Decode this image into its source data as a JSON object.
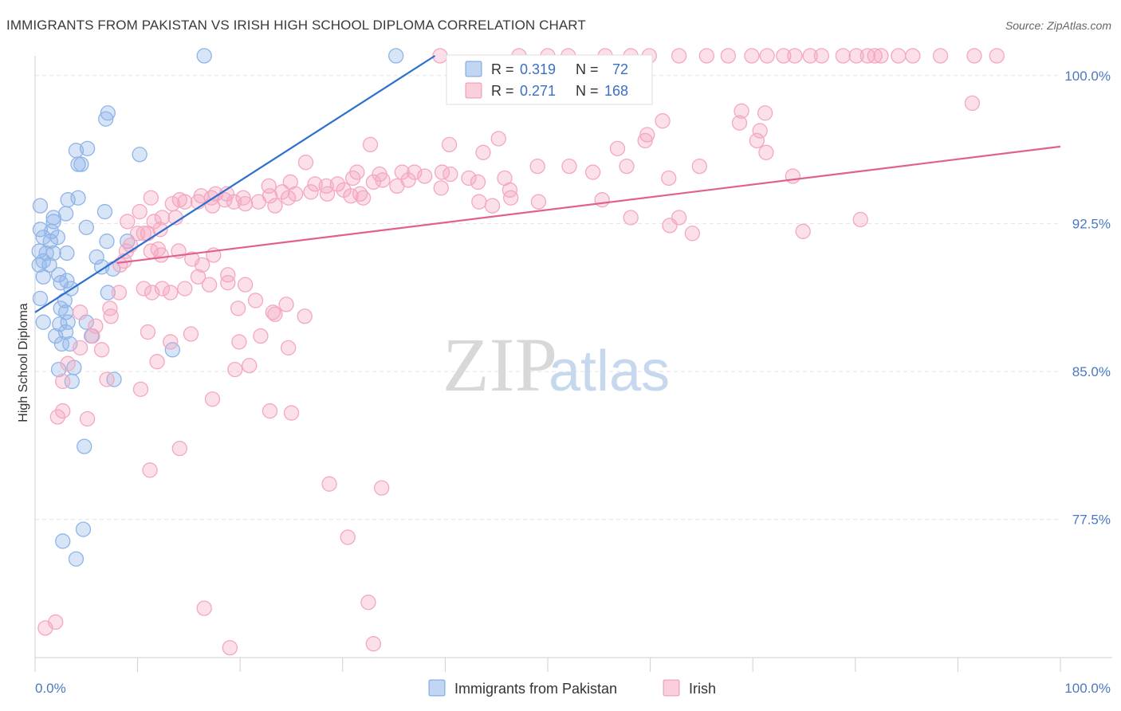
{
  "title": "IMMIGRANTS FROM PAKISTAN VS IRISH HIGH SCHOOL DIPLOMA CORRELATION CHART",
  "source": "Source: ZipAtlas.com",
  "watermark": {
    "zip": "ZIP",
    "atlas": "atlas"
  },
  "chart_data": {
    "type": "scatter",
    "xlabel": "",
    "ylabel": "High School Diploma",
    "xlim": [
      0,
      100
    ],
    "ylim": [
      70.5,
      101
    ],
    "x_tick_labels": [
      "0.0%",
      "100.0%"
    ],
    "y_ticks": [
      100.0,
      92.5,
      85.0,
      77.5
    ],
    "y_tick_labels": [
      "100.0%",
      "92.5%",
      "85.0%",
      "77.5%"
    ],
    "grid": true,
    "legend_placement": "top-center",
    "series": [
      {
        "name": "Immigrants from Pakistan",
        "color": "#8fb4e8",
        "line_color": "#2d6fd0",
        "stats": {
          "r_label": "R =",
          "r": "0.319",
          "n_label": "N =",
          "n": "72"
        },
        "trend": {
          "x": [
            0,
            39
          ],
          "y": [
            88.0,
            101.0
          ]
        },
        "points": [
          [
            16.5,
            101
          ],
          [
            35.2,
            101
          ],
          [
            7.1,
            98.1
          ],
          [
            6.9,
            97.8
          ],
          [
            4.0,
            96.2
          ],
          [
            5.1,
            96.3
          ],
          [
            10.2,
            96.0
          ],
          [
            4.2,
            95.5
          ],
          [
            4.5,
            95.5
          ],
          [
            0.5,
            93.4
          ],
          [
            3.2,
            93.7
          ],
          [
            4.2,
            93.8
          ],
          [
            3.0,
            93.0
          ],
          [
            6.8,
            93.1
          ],
          [
            0.5,
            92.2
          ],
          [
            1.8,
            92.6
          ],
          [
            1.8,
            92.8
          ],
          [
            5.0,
            92.3
          ],
          [
            1.6,
            92.1
          ],
          [
            0.8,
            91.8
          ],
          [
            1.5,
            91.6
          ],
          [
            2.2,
            91.8
          ],
          [
            7.0,
            91.6
          ],
          [
            9.0,
            91.6
          ],
          [
            0.4,
            91.1
          ],
          [
            1.1,
            91.0
          ],
          [
            1.8,
            91.0
          ],
          [
            3.1,
            91.0
          ],
          [
            6.0,
            90.8
          ],
          [
            0.4,
            90.4
          ],
          [
            0.8,
            90.6
          ],
          [
            1.4,
            90.4
          ],
          [
            6.5,
            90.3
          ],
          [
            7.6,
            90.2
          ],
          [
            0.8,
            89.8
          ],
          [
            2.3,
            89.9
          ],
          [
            3.1,
            89.6
          ],
          [
            2.5,
            89.5
          ],
          [
            3.5,
            89.2
          ],
          [
            7.1,
            89.0
          ],
          [
            0.5,
            88.7
          ],
          [
            2.9,
            88.6
          ],
          [
            2.5,
            88.2
          ],
          [
            3.0,
            88.0
          ],
          [
            0.8,
            87.5
          ],
          [
            2.4,
            87.4
          ],
          [
            3.2,
            87.5
          ],
          [
            5.0,
            87.5
          ],
          [
            2.0,
            86.8
          ],
          [
            3.0,
            87.0
          ],
          [
            5.5,
            86.8
          ],
          [
            2.6,
            86.4
          ],
          [
            3.4,
            86.4
          ],
          [
            13.4,
            86.1
          ],
          [
            2.3,
            85.1
          ],
          [
            3.8,
            85.2
          ],
          [
            7.7,
            84.6
          ],
          [
            3.6,
            84.5
          ],
          [
            4.8,
            81.2
          ],
          [
            2.7,
            76.4
          ],
          [
            4.7,
            77.0
          ],
          [
            4.0,
            75.5
          ]
        ]
      },
      {
        "name": "Irish",
        "color": "#f4a7c0",
        "line_color": "#e0608f",
        "stats": {
          "r_label": "R =",
          "r": "0.271",
          "n_label": "N =",
          "n": "168"
        },
        "trend": {
          "x": [
            8,
            100
          ],
          "y": [
            90.5,
            96.4
          ]
        },
        "points": [
          [
            39.5,
            101
          ],
          [
            47.2,
            101
          ],
          [
            50,
            101
          ],
          [
            52,
            101
          ],
          [
            55.6,
            101
          ],
          [
            58.1,
            101
          ],
          [
            59.9,
            101
          ],
          [
            62.8,
            101
          ],
          [
            65.5,
            101
          ],
          [
            67.6,
            101
          ],
          [
            69.9,
            101
          ],
          [
            71.4,
            101
          ],
          [
            73.0,
            101
          ],
          [
            74.1,
            101
          ],
          [
            75.6,
            101
          ],
          [
            76.7,
            101
          ],
          [
            78.8,
            101
          ],
          [
            80.1,
            101
          ],
          [
            81.2,
            101
          ],
          [
            81.9,
            101
          ],
          [
            82.5,
            101
          ],
          [
            84.2,
            101
          ],
          [
            85.6,
            101
          ],
          [
            88.3,
            101
          ],
          [
            91.6,
            101
          ],
          [
            93.8,
            101
          ],
          [
            68.9,
            98.2
          ],
          [
            71.2,
            98.1
          ],
          [
            91.4,
            98.6
          ],
          [
            61.2,
            97.7
          ],
          [
            68.7,
            97.6
          ],
          [
            59.5,
            96.7
          ],
          [
            70.4,
            96.7
          ],
          [
            70.7,
            97.2
          ],
          [
            45.2,
            96.8
          ],
          [
            40.4,
            96.5
          ],
          [
            59.7,
            97.0
          ],
          [
            56.8,
            96.3
          ],
          [
            71.3,
            96.1
          ],
          [
            43.7,
            96.1
          ],
          [
            32.7,
            96.5
          ],
          [
            26.4,
            95.6
          ],
          [
            31.4,
            95.1
          ],
          [
            39.7,
            95.1
          ],
          [
            49.0,
            95.4
          ],
          [
            52.1,
            95.4
          ],
          [
            40.5,
            95.0
          ],
          [
            37.0,
            95.1
          ],
          [
            45.8,
            94.8
          ],
          [
            57.7,
            95.4
          ],
          [
            64.8,
            95.4
          ],
          [
            33.6,
            95.0
          ],
          [
            35.8,
            95.1
          ],
          [
            43.2,
            94.6
          ],
          [
            54.4,
            95.1
          ],
          [
            61.8,
            94.8
          ],
          [
            73.9,
            94.9
          ],
          [
            22.8,
            94.4
          ],
          [
            24.9,
            94.6
          ],
          [
            27.3,
            94.5
          ],
          [
            29.5,
            94.5
          ],
          [
            31.0,
            94.8
          ],
          [
            33.9,
            94.7
          ],
          [
            35.3,
            94.4
          ],
          [
            36.4,
            94.7
          ],
          [
            38.0,
            94.9
          ],
          [
            46.3,
            94.2
          ],
          [
            42.3,
            94.8
          ],
          [
            28.5,
            94.0
          ],
          [
            30.1,
            94.2
          ],
          [
            25.4,
            94.0
          ],
          [
            26.9,
            94.1
          ],
          [
            31.7,
            94.0
          ],
          [
            17.6,
            94.0
          ],
          [
            18.7,
            94.0
          ],
          [
            20.3,
            93.8
          ],
          [
            22.9,
            93.9
          ],
          [
            24.1,
            94.1
          ],
          [
            14.1,
            93.7
          ],
          [
            16.2,
            93.9
          ],
          [
            17.2,
            93.8
          ],
          [
            15.9,
            93.6
          ],
          [
            18.5,
            93.7
          ],
          [
            21.8,
            93.6
          ],
          [
            24.7,
            93.8
          ],
          [
            28.4,
            94.4
          ],
          [
            32.0,
            93.8
          ],
          [
            33.0,
            94.6
          ],
          [
            11.3,
            93.8
          ],
          [
            13.4,
            93.5
          ],
          [
            14.6,
            93.6
          ],
          [
            17.3,
            93.4
          ],
          [
            19.4,
            93.6
          ],
          [
            20.5,
            93.5
          ],
          [
            23.4,
            93.4
          ],
          [
            30.8,
            93.9
          ],
          [
            39.6,
            94.3
          ],
          [
            43.3,
            93.6
          ],
          [
            44.6,
            93.4
          ],
          [
            46.4,
            93.8
          ],
          [
            49.1,
            93.6
          ],
          [
            55.3,
            93.7
          ],
          [
            58.1,
            92.8
          ],
          [
            61.9,
            92.4
          ],
          [
            62.8,
            92.8
          ],
          [
            64.1,
            92.0
          ],
          [
            74.9,
            92.1
          ],
          [
            80.5,
            92.7
          ],
          [
            9.0,
            92.6
          ],
          [
            10.2,
            93.1
          ],
          [
            11.6,
            92.6
          ],
          [
            12.4,
            92.8
          ],
          [
            13.7,
            92.8
          ],
          [
            12.2,
            92.2
          ],
          [
            11.0,
            92.0
          ],
          [
            10.6,
            92.0
          ],
          [
            10.0,
            92.0
          ],
          [
            9.3,
            91.4
          ],
          [
            8.9,
            91.1
          ],
          [
            8.3,
            90.4
          ],
          [
            8.7,
            90.6
          ],
          [
            11.3,
            91.1
          ],
          [
            12.3,
            90.9
          ],
          [
            12.0,
            91.2
          ],
          [
            14.0,
            91.1
          ],
          [
            15.3,
            90.7
          ],
          [
            16.3,
            90.4
          ],
          [
            17.4,
            90.9
          ],
          [
            18.8,
            89.9
          ],
          [
            20.5,
            89.4
          ],
          [
            7.3,
            88.2
          ],
          [
            8.2,
            89.0
          ],
          [
            10.6,
            89.2
          ],
          [
            11.4,
            89.0
          ],
          [
            12.4,
            89.2
          ],
          [
            13.2,
            89.0
          ],
          [
            17.0,
            89.4
          ],
          [
            18.8,
            89.5
          ],
          [
            19.8,
            88.2
          ],
          [
            21.5,
            88.6
          ],
          [
            23.2,
            88.0
          ],
          [
            24.5,
            88.4
          ],
          [
            7.4,
            87.8
          ],
          [
            5.9,
            87.3
          ],
          [
            4.4,
            86.2
          ],
          [
            3.2,
            85.4
          ],
          [
            2.7,
            84.5
          ],
          [
            2.7,
            83.0
          ],
          [
            2.2,
            82.7
          ],
          [
            5.1,
            82.6
          ],
          [
            7.0,
            84.6
          ],
          [
            10.3,
            84.1
          ],
          [
            17.3,
            83.6
          ],
          [
            22.9,
            83.0
          ],
          [
            26.3,
            87.8
          ],
          [
            24.7,
            86.2
          ],
          [
            14.1,
            81.1
          ],
          [
            4.4,
            88.0
          ],
          [
            5.6,
            86.8
          ],
          [
            13.2,
            86.5
          ],
          [
            19.5,
            85.1
          ],
          [
            20.9,
            85.3
          ],
          [
            11.0,
            87.0
          ],
          [
            6.5,
            86.1
          ],
          [
            14.6,
            89.2
          ],
          [
            15.9,
            89.8
          ],
          [
            11.9,
            85.5
          ],
          [
            15.2,
            86.9
          ],
          [
            19.9,
            86.5
          ],
          [
            22.0,
            86.8
          ],
          [
            23.4,
            87.9
          ],
          [
            28.7,
            79.3
          ],
          [
            33.8,
            79.1
          ],
          [
            30.5,
            76.6
          ],
          [
            32.5,
            73.3
          ],
          [
            25.0,
            82.9
          ],
          [
            11.2,
            80.0
          ],
          [
            16.5,
            73.0
          ],
          [
            19.0,
            71.0
          ],
          [
            2.0,
            72.3
          ],
          [
            1.0,
            72.0
          ],
          [
            33.0,
            71.2
          ]
        ]
      }
    ]
  },
  "bottom_legend": [
    "Immigrants from Pakistan",
    "Irish"
  ]
}
